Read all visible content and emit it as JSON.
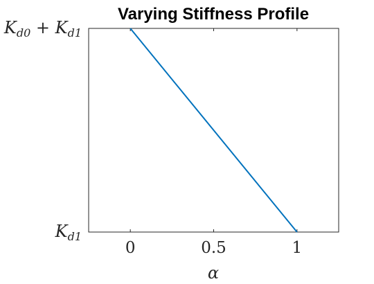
{
  "chart_data": {
    "type": "line",
    "title": "Varying Stiffness Profile",
    "xlabel": "α",
    "ylabel": "",
    "xlim": [
      -0.25,
      1.25
    ],
    "ylim": [
      0,
      1
    ],
    "x_ticks": [
      "0",
      "0.5",
      "1"
    ],
    "x_tick_values": [
      0,
      0.5,
      1
    ],
    "y_ticks": [
      {
        "value": 0,
        "base": "K",
        "sub": "d1",
        "op": "",
        "base2": "",
        "sub2": ""
      },
      {
        "value": 1,
        "base": "K",
        "sub": "d0",
        "op": " + ",
        "base2": "K",
        "sub2": "d1"
      }
    ],
    "series": [
      {
        "x": [
          0,
          1
        ],
        "y": [
          1,
          0
        ],
        "color": "#0072bd"
      }
    ],
    "grid": false,
    "box": true
  }
}
